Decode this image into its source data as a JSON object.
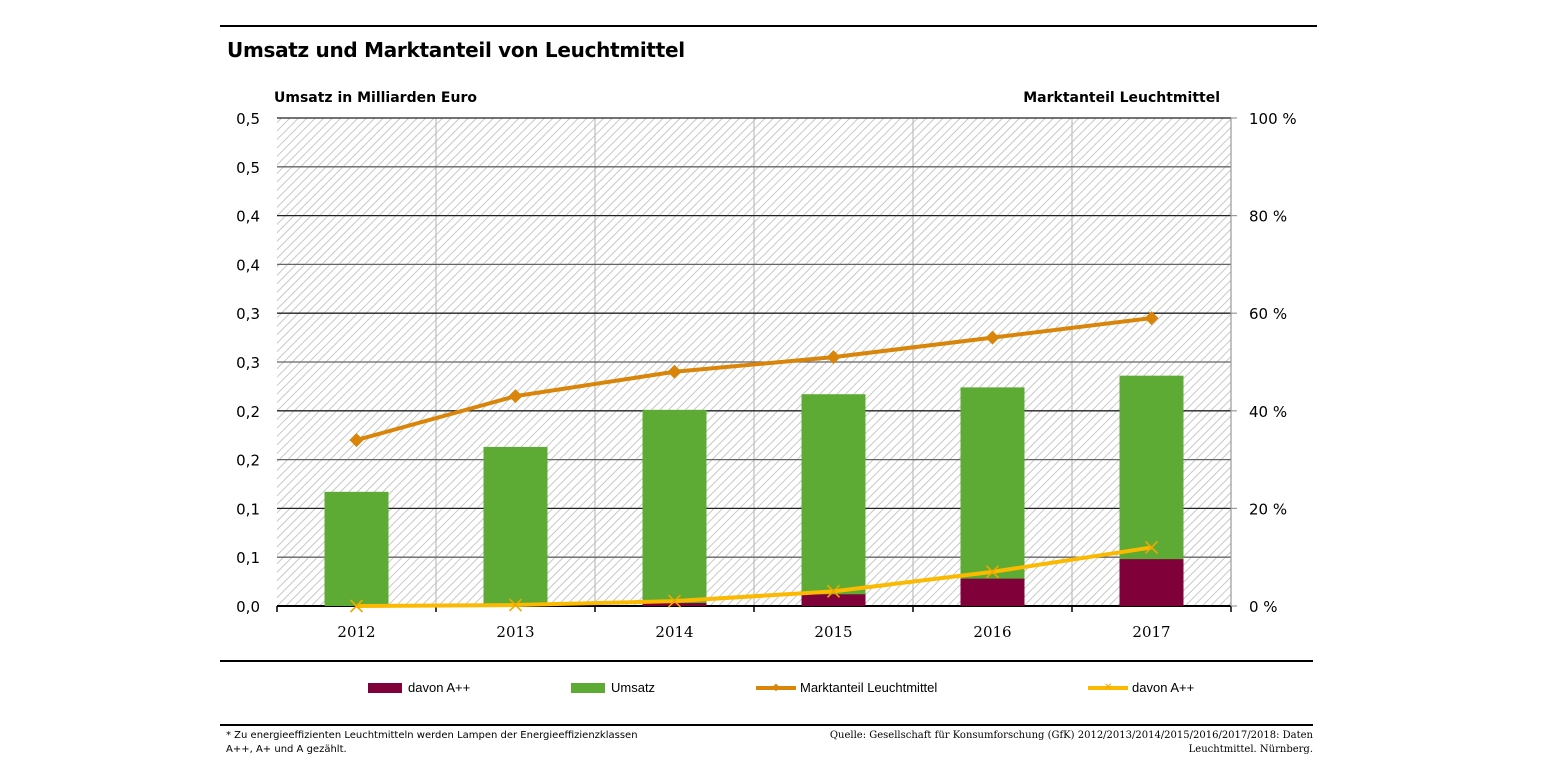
{
  "title": "Umsatz und Marktanteil von Leuchtmittel",
  "chart_data": {
    "type": "bar",
    "title": "Umsatz und Marktanteil von Leuchtmittel",
    "ylabel": "Umsatz in Milliarden Euro",
    "y2label": "Marktanteil Leuchtmittel",
    "categories": [
      "2012",
      "2013",
      "2014",
      "2015",
      "2016",
      "2017"
    ],
    "ylim": [
      0,
      0.5
    ],
    "y_ticks": [
      0,
      0.05,
      0.1,
      0.15,
      0.2,
      0.25,
      0.3,
      0.35,
      0.4,
      0.45,
      0.5
    ],
    "y_tick_labels": [
      "0,0",
      "0,1",
      "0,1",
      "0,2",
      "0,2",
      "0,3",
      "0,3",
      "0,4",
      "0,4",
      "0,5",
      "0,5"
    ],
    "y2lim": [
      0,
      100
    ],
    "y2_ticks": [
      0,
      20,
      40,
      60,
      80,
      100
    ],
    "y2_tick_labels": [
      "0 %",
      "20 %",
      "40 %",
      "60 %",
      "80 %",
      "100 %"
    ],
    "grid": true,
    "legend_position": "bottom",
    "series": [
      {
        "name": "davon A++",
        "type": "bar",
        "axis": "left",
        "color": "#800039",
        "values": [
          0.0,
          0.0,
          0.003,
          0.012,
          0.028,
          0.048
        ]
      },
      {
        "name": "Umsatz",
        "type": "bar",
        "axis": "left",
        "color": "#5dab35",
        "values": [
          0.117,
          0.163,
          0.201,
          0.217,
          0.224,
          0.236
        ]
      },
      {
        "name": "Marktanteil Leuchtmittel",
        "type": "line",
        "axis": "right",
        "marker": "diamond",
        "color": "#d9850a",
        "values": [
          34,
          43,
          48,
          51,
          55,
          59
        ]
      },
      {
        "name": "davon A++",
        "type": "line",
        "axis": "right",
        "marker": "x",
        "color": "#fbb900",
        "values": [
          0,
          0.2,
          1,
          3,
          7,
          12
        ]
      }
    ]
  },
  "legend": [
    {
      "label": "davon A++",
      "kind": "bar",
      "color": "#800039"
    },
    {
      "label": "Umsatz",
      "kind": "bar",
      "color": "#5dab35"
    },
    {
      "label": "Marktanteil Leuchtmittel",
      "kind": "line",
      "marker": "◆",
      "color": "#d9850a"
    },
    {
      "label": "davon A++",
      "kind": "line",
      "marker": "✕",
      "color": "#fbb900"
    }
  ],
  "footnote": "* Zu energieeffizienten Leuchtmitteln werden Lampen der Energieeffizienzklassen A++, A+ und A gezählt.",
  "source": "Quelle: Gesellschaft für Konsumforschung (GfK) 2012/2013/2014/2015/2016/2017/2018: Daten Leuchtmittel. Nürnberg."
}
